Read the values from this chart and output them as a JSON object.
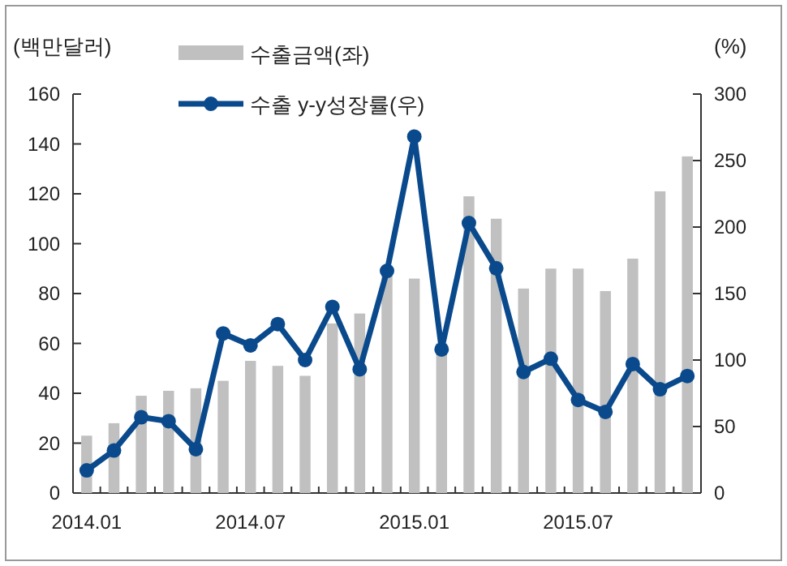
{
  "chart_data": {
    "type": "bar",
    "ylabel": "(백만달러)",
    "y2label": "(%)",
    "categories": [
      "2014.01",
      null,
      null,
      null,
      null,
      null,
      "2014.07",
      null,
      null,
      null,
      null,
      null,
      "2015.01",
      null,
      null,
      null,
      null,
      null,
      "2015.07",
      null,
      null,
      null,
      null
    ],
    "series": [
      {
        "name": "수출금액(좌)",
        "color": "#c0c0c0",
        "values": [
          23,
          28,
          39,
          41,
          42,
          45,
          53,
          51,
          47,
          68,
          72,
          87,
          86,
          60,
          119,
          110,
          82,
          90,
          90,
          81,
          94,
          121,
          135
        ]
      },
      {
        "name": "수출 y-y성장률(우)",
        "type": "line",
        "axis": "y2",
        "color": "#0a4a8c",
        "values": [
          17,
          32,
          57,
          54,
          33,
          120,
          111,
          127,
          100,
          140,
          93,
          167,
          268,
          108,
          203,
          169,
          91,
          101,
          70,
          61,
          97,
          78,
          88
        ]
      }
    ],
    "ylim": [
      0,
      160
    ],
    "yticks": [
      0,
      20,
      40,
      60,
      80,
      100,
      120,
      140,
      160
    ],
    "y2lim": [
      0,
      300
    ],
    "y2ticks": [
      0,
      50,
      100,
      150,
      200,
      250,
      300
    ],
    "legend": "top left",
    "marker": "circle",
    "line_style": "solid"
  }
}
